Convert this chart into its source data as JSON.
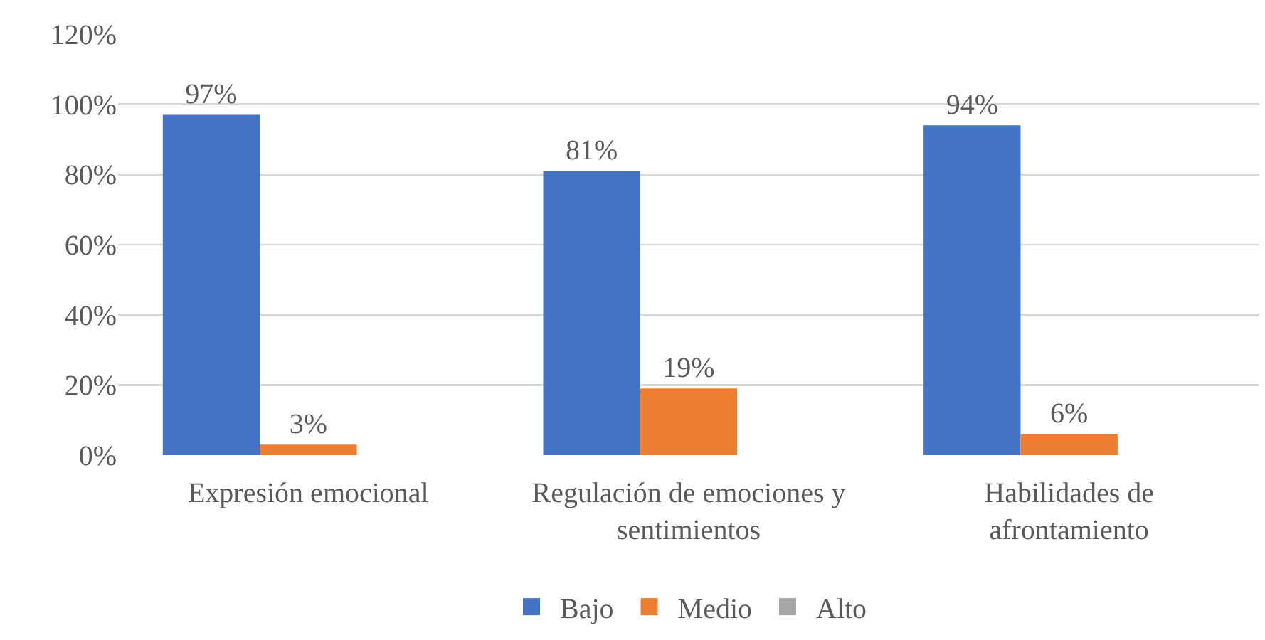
{
  "chart_data": {
    "type": "bar",
    "categories": [
      "Expresión emocional",
      "Regulación de emociones y sentimientos",
      "Habilidades de afrontamiento"
    ],
    "series": [
      {
        "name": "Bajo",
        "color": "#4472c4",
        "values": [
          97,
          81,
          94
        ],
        "value_labels": [
          "97%",
          "81%",
          "94%"
        ]
      },
      {
        "name": "Medio",
        "color": "#ed7d31",
        "values": [
          3,
          19,
          6
        ],
        "value_labels": [
          "3%",
          "19%",
          "6%"
        ]
      },
      {
        "name": "Alto",
        "color": "#a5a5a5",
        "values": [
          null,
          null,
          null
        ],
        "value_labels": [
          null,
          null,
          null
        ]
      }
    ],
    "ylim": [
      0,
      120
    ],
    "yticks": [
      {
        "value": 0,
        "label": "0%"
      },
      {
        "value": 20,
        "label": "20%"
      },
      {
        "value": 40,
        "label": "40%"
      },
      {
        "value": 60,
        "label": "60%"
      },
      {
        "value": 80,
        "label": "80%"
      },
      {
        "value": 100,
        "label": "100%"
      },
      {
        "value": 120,
        "label": "120%"
      }
    ],
    "grid": "y",
    "legend": "bottom"
  }
}
